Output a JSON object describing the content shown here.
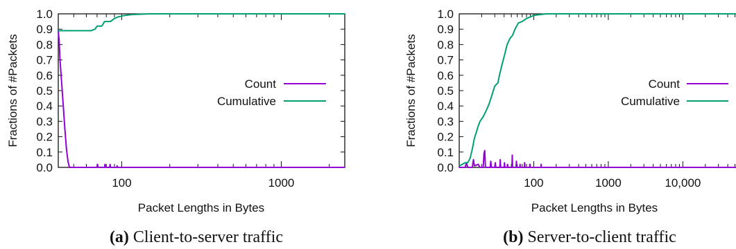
{
  "chart_data": [
    {
      "type": "line",
      "caption_letter": "(a)",
      "caption_text": " Client-to-server traffic",
      "xlabel": "Packet Lengths in Bytes",
      "ylabel": "Fractions of #Packets",
      "xscale": "log",
      "xlim": [
        40,
        2500
      ],
      "ylim": [
        0,
        1
      ],
      "xticks": [
        {
          "value": 100,
          "label": "100"
        },
        {
          "value": 1000,
          "label": "1000"
        }
      ],
      "yticks": [
        "0.0",
        "0.1",
        "0.2",
        "0.3",
        "0.4",
        "0.5",
        "0.6",
        "0.7",
        "0.8",
        "0.9",
        "1.0"
      ],
      "legend_position": "center-right",
      "series": [
        {
          "name": "Count",
          "color": "#9400d3",
          "points": [
            [
              40,
              0.89
            ],
            [
              40.5,
              0.83
            ],
            [
              41,
              0.7
            ],
            [
              42,
              0.55
            ],
            [
              43,
              0.4
            ],
            [
              44,
              0.25
            ],
            [
              45,
              0.12
            ],
            [
              46,
              0.04
            ],
            [
              47,
              0.0
            ],
            [
              70,
              0.0
            ],
            [
              70.5,
              0.02
            ],
            [
              71,
              0.0
            ],
            [
              78,
              0.0
            ],
            [
              78.5,
              0.02
            ],
            [
              79,
              0.0
            ],
            [
              84,
              0.0
            ],
            [
              84.5,
              0.02
            ],
            [
              85,
              0.0
            ],
            [
              93,
              0.0
            ],
            [
              93.5,
              0.01
            ],
            [
              94,
              0.0
            ],
            [
              2500,
              0.0
            ]
          ]
        },
        {
          "name": "Cumulative",
          "color": "#009e73",
          "points": [
            [
              40,
              0.89
            ],
            [
              45,
              0.89
            ],
            [
              55,
              0.89
            ],
            [
              64,
              0.89
            ],
            [
              68,
              0.9
            ],
            [
              70,
              0.92
            ],
            [
              75,
              0.92
            ],
            [
              78,
              0.95
            ],
            [
              85,
              0.95
            ],
            [
              90,
              0.97
            ],
            [
              95,
              0.98
            ],
            [
              105,
              0.99
            ],
            [
              115,
              0.995
            ],
            [
              150,
              1.0
            ],
            [
              2500,
              1.0
            ]
          ]
        }
      ]
    },
    {
      "type": "line",
      "caption_letter": "(b)",
      "caption_text": " Server-to-client traffic",
      "xlabel": "Packet Lengths in Bytes",
      "ylabel": "Fractions of #Packets",
      "xscale": "log",
      "xlim": [
        10,
        60000
      ],
      "ylim": [
        0,
        1
      ],
      "xticks": [
        {
          "value": 100,
          "label": "100"
        },
        {
          "value": 1000,
          "label": "1000"
        },
        {
          "value": 10000,
          "label": "10,000"
        }
      ],
      "yticks": [
        "0.0",
        "0.1",
        "0.2",
        "0.3",
        "0.4",
        "0.5",
        "0.6",
        "0.7",
        "0.8",
        "0.9",
        "1.0"
      ],
      "legend_position": "center-right",
      "series": [
        {
          "name": "Count",
          "color": "#9400d3",
          "points": [
            [
              10,
              0.0
            ],
            [
              12,
              0.0
            ],
            [
              12.5,
              0.03
            ],
            [
              13,
              0.0
            ],
            [
              15,
              0.0
            ],
            [
              15.5,
              0.05
            ],
            [
              16,
              0.01
            ],
            [
              18,
              0.02
            ],
            [
              19,
              0.0
            ],
            [
              21,
              0.0
            ],
            [
              21.5,
              0.09
            ],
            [
              22,
              0.11
            ],
            [
              22.5,
              0.0
            ],
            [
              26,
              0.0
            ],
            [
              26.5,
              0.04
            ],
            [
              27,
              0.0
            ],
            [
              30,
              0.0
            ],
            [
              30.5,
              0.03
            ],
            [
              31,
              0.0
            ],
            [
              35,
              0.0
            ],
            [
              35.5,
              0.05
            ],
            [
              36,
              0.0
            ],
            [
              40,
              0.0
            ],
            [
              40.5,
              0.03
            ],
            [
              41,
              0.0
            ],
            [
              44,
              0.0
            ],
            [
              44.5,
              0.02
            ],
            [
              45,
              0.0
            ],
            [
              51,
              0.0
            ],
            [
              51.5,
              0.08
            ],
            [
              52,
              0.0
            ],
            [
              58,
              0.0
            ],
            [
              58.5,
              0.04
            ],
            [
              59,
              0.0
            ],
            [
              65,
              0.0
            ],
            [
              65.5,
              0.02
            ],
            [
              66,
              0.0
            ],
            [
              75,
              0.0
            ],
            [
              75.5,
              0.03
            ],
            [
              76,
              0.0
            ],
            [
              88,
              0.0
            ],
            [
              88.5,
              0.02
            ],
            [
              89,
              0.0
            ],
            [
              125,
              0.0
            ],
            [
              125.5,
              0.02
            ],
            [
              126,
              0.0
            ],
            [
              60000,
              0.0
            ]
          ]
        },
        {
          "name": "Cumulative",
          "color": "#009e73",
          "points": [
            [
              10,
              0.01
            ],
            [
              11,
              0.02
            ],
            [
              12,
              0.03
            ],
            [
              13,
              0.03
            ],
            [
              14,
              0.06
            ],
            [
              15,
              0.12
            ],
            [
              16,
              0.19
            ],
            [
              17,
              0.23
            ],
            [
              18,
              0.27
            ],
            [
              19,
              0.3
            ],
            [
              21,
              0.33
            ],
            [
              23,
              0.37
            ],
            [
              25,
              0.41
            ],
            [
              27,
              0.46
            ],
            [
              30,
              0.53
            ],
            [
              33,
              0.55
            ],
            [
              35,
              0.61
            ],
            [
              38,
              0.68
            ],
            [
              41,
              0.74
            ],
            [
              44,
              0.8
            ],
            [
              48,
              0.84
            ],
            [
              52,
              0.86
            ],
            [
              56,
              0.9
            ],
            [
              62,
              0.94
            ],
            [
              70,
              0.95
            ],
            [
              80,
              0.97
            ],
            [
              90,
              0.98
            ],
            [
              100,
              0.99
            ],
            [
              120,
              0.995
            ],
            [
              150,
              1.0
            ],
            [
              60000,
              1.0
            ]
          ]
        }
      ]
    }
  ]
}
